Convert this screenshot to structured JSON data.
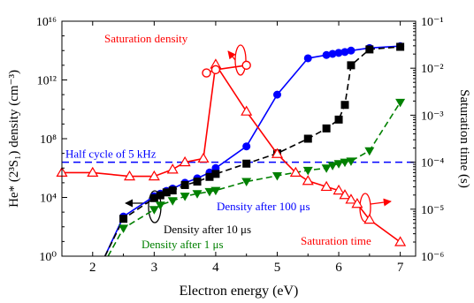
{
  "chart_data": {
    "type": "line",
    "xlabel": "Electron energy (eV)",
    "ylabel_left": "He* (2³S₁) density (cm⁻³)",
    "ylabel_right": "Saturation time (s)",
    "xlim": [
      1.5,
      7.25
    ],
    "ylim_left": [
      1,
      1e+16
    ],
    "ylim_right": [
      1e-06,
      0.1
    ],
    "yscale": "log",
    "x_ticks": [
      "2",
      "3",
      "4",
      "5",
      "6",
      "7"
    ],
    "y_left_ticks": [
      "10⁰",
      "10⁴",
      "10⁸",
      "10¹²",
      "10¹⁶"
    ],
    "y_right_ticks": [
      "10⁻⁶",
      "10⁻⁵",
      "10⁻⁴",
      "10⁻³",
      "10⁻²",
      "10⁻¹"
    ],
    "reference_line": {
      "label": "Half cycle of 5 kHz",
      "axis": "right",
      "y": 0.0001,
      "color": "#0000ff"
    },
    "series": [
      {
        "name": "Density after 100 μs",
        "axis": "left",
        "color": "#0000ff",
        "marker": "circle",
        "line": "solid",
        "x": [
          2.2,
          2.5,
          3.0,
          3.1,
          3.2,
          3.3,
          3.5,
          3.7,
          3.9,
          4.0,
          4.5,
          5.0,
          5.5,
          5.8,
          5.9,
          6.0,
          6.1,
          6.2,
          6.5,
          7.0
        ],
        "y": [
          1,
          500,
          12000,
          18000,
          28000,
          40000,
          100000,
          200000,
          500000,
          1000000,
          30000000.0,
          100000000000.0,
          30000000000000.0,
          50000000000000.0,
          60000000000000.0,
          70000000000000.0,
          80000000000000.0,
          100000000000000.0,
          150000000000000.0,
          200000000000000.0
        ]
      },
      {
        "name": "Density after 10 μs",
        "axis": "left",
        "color": "#000000",
        "marker": "square",
        "line": "dash",
        "x": [
          2.2,
          2.5,
          3.0,
          3.1,
          3.2,
          3.3,
          3.5,
          3.7,
          3.9,
          4.0,
          4.5,
          5.0,
          5.5,
          5.8,
          6.0,
          6.1,
          6.2,
          6.5,
          7.0
        ],
        "y": [
          1,
          350,
          9000,
          14000,
          22000,
          30000,
          70000,
          120000,
          250000,
          400000,
          2000000,
          10000000.0,
          100000000.0,
          500000000.0,
          2000000000.0,
          20000000000.0,
          10000000000000.0,
          120000000000000.0,
          180000000000000.0
        ]
      },
      {
        "name": "Density after 1 μs",
        "axis": "left",
        "color": "#008000",
        "marker": "triangle-down",
        "line": "dash",
        "x": [
          2.25,
          2.5,
          3.0,
          3.1,
          3.3,
          3.5,
          3.7,
          3.9,
          4.0,
          4.5,
          5.0,
          5.5,
          5.8,
          5.9,
          6.0,
          6.1,
          6.2,
          6.5,
          7.0
        ],
        "y": [
          1,
          80,
          1500,
          3000,
          6000,
          12000,
          18000,
          25000,
          30000,
          120000,
          300000,
          700000,
          1000000,
          1500000,
          2000000,
          2500000,
          3000000,
          15000000.0,
          30000000000.0
        ]
      },
      {
        "name": "Saturation time",
        "axis": "right",
        "color": "#ff0000",
        "marker": "triangle-up-open",
        "line": "solid",
        "x": [
          1.5,
          2.0,
          2.6,
          3.0,
          3.3,
          3.5,
          3.8,
          4.0,
          4.5,
          5.0,
          5.3,
          5.5,
          5.8,
          6.0,
          6.1,
          6.2,
          6.3,
          6.5,
          7.0
        ],
        "y": [
          6e-05,
          6e-05,
          5e-05,
          5e-05,
          7e-05,
          0.0001,
          0.00012,
          0.012,
          0.0012,
          0.00015,
          6e-05,
          4e-05,
          3e-05,
          2.5e-05,
          2e-05,
          1.6e-05,
          1.3e-05,
          6e-06,
          2e-06
        ]
      },
      {
        "name": "Saturation density",
        "axis": "left",
        "color": "#ff0000",
        "marker": "circle-open",
        "line": "solid",
        "x": [
          3.85,
          4.0,
          4.5
        ],
        "y": [
          3000000000000.0,
          5000000000000.0,
          10000000000000.0
        ]
      }
    ],
    "annotations": [
      {
        "text": "Saturation density",
        "color": "#ff0000"
      },
      {
        "text": "Saturation time",
        "color": "#ff0000"
      },
      {
        "text": "Density after 100 μs",
        "color": "#0000ff"
      },
      {
        "text": "Density after 10 μs",
        "color": "#000000"
      },
      {
        "text": "Density after 1 μs",
        "color": "#008000"
      }
    ]
  }
}
